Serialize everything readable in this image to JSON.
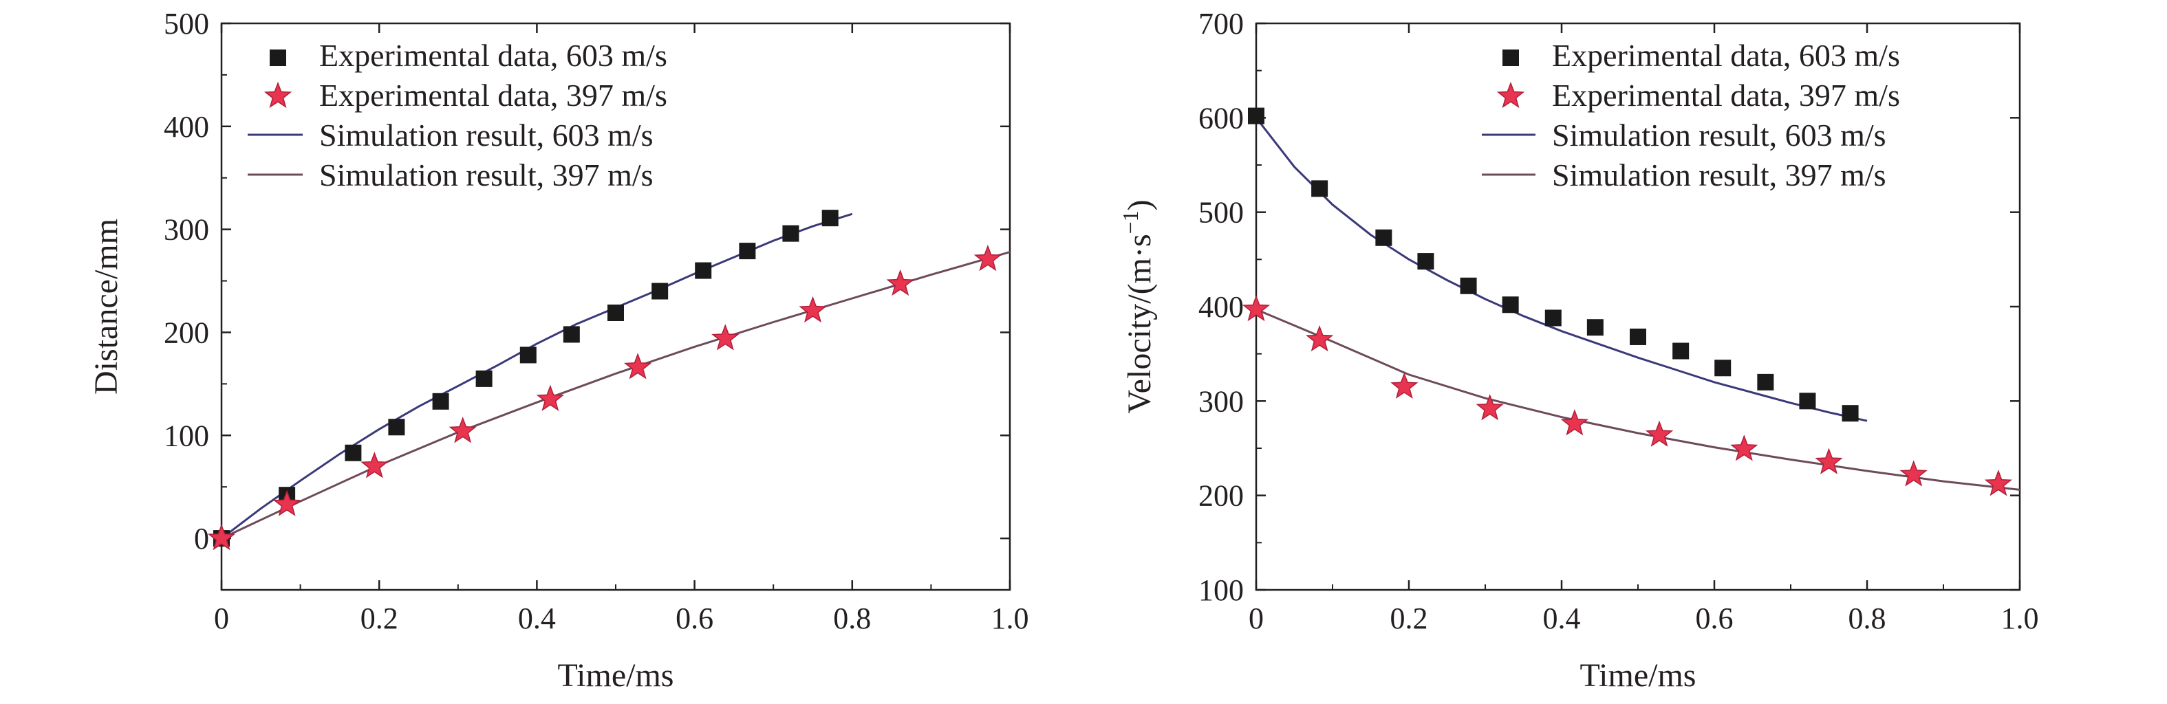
{
  "colors": {
    "axis": "#231f20",
    "series_603": "#1a1a1a",
    "series_397_fill": "#e8344e",
    "series_397_stroke": "#b01e3a",
    "sim_603_line": "#3a3a7a",
    "sim_397_line": "#6e4a5a"
  },
  "chart_data": [
    {
      "type": "scatter",
      "title": "",
      "xlabel": "Time/ms",
      "ylabel": "Distance/mm",
      "xlim": [
        0,
        1.0
      ],
      "ylim": [
        -50,
        500
      ],
      "x_ticks": [
        "0",
        "0.2",
        "0.4",
        "0.6",
        "0.8",
        "1.0"
      ],
      "y_ticks": [
        "0",
        "100",
        "200",
        "300",
        "400",
        "500"
      ],
      "legend_position": "top-left",
      "legend": [
        "Experimental data, 603 m/s",
        "Experimental data, 397 m/s",
        "Simulation result, 603 m/s",
        "Simulation result, 397 m/s"
      ],
      "series": [
        {
          "name": "Experimental data, 603 m/s",
          "marker": "square",
          "x": [
            0,
            0.083,
            0.167,
            0.222,
            0.278,
            0.333,
            0.389,
            0.444,
            0.5,
            0.556,
            0.611,
            0.667,
            0.722,
            0.772
          ],
          "y": [
            0,
            42,
            83,
            108,
            133,
            155,
            178,
            198,
            219,
            240,
            260,
            279,
            296,
            311
          ]
        },
        {
          "name": "Experimental data, 397 m/s",
          "marker": "star",
          "x": [
            0,
            0.083,
            0.194,
            0.306,
            0.417,
            0.528,
            0.639,
            0.75,
            0.861,
            0.972
          ],
          "y": [
            0,
            33,
            70,
            104,
            135,
            166,
            194,
            221,
            247,
            271
          ]
        },
        {
          "name": "Simulation result, 603 m/s",
          "line": true,
          "x": [
            0,
            0.05,
            0.1,
            0.15,
            0.2,
            0.25,
            0.3,
            0.35,
            0.4,
            0.45,
            0.5,
            0.55,
            0.6,
            0.65,
            0.7,
            0.75,
            0.8
          ],
          "y": [
            0,
            29,
            56,
            82,
            106,
            128,
            148,
            168,
            189,
            208,
            224,
            240,
            257,
            273,
            289,
            303,
            315
          ]
        },
        {
          "name": "Simulation result, 397 m/s",
          "line": true,
          "x": [
            0,
            0.1,
            0.2,
            0.3,
            0.4,
            0.5,
            0.6,
            0.7,
            0.8,
            0.9,
            1.0
          ],
          "y": [
            0,
            36,
            71,
            103,
            132,
            160,
            186,
            210,
            233,
            256,
            278
          ]
        }
      ]
    },
    {
      "type": "scatter",
      "title": "",
      "xlabel": "Time/ms",
      "ylabel": "Velocity/(m·s",
      "ylabel_sup": "−1",
      "ylabel_end": ")",
      "xlim": [
        0,
        1.0
      ],
      "ylim": [
        100,
        700
      ],
      "x_ticks": [
        "0",
        "0.2",
        "0.4",
        "0.6",
        "0.8",
        "1.0"
      ],
      "y_ticks": [
        "100",
        "200",
        "300",
        "400",
        "500",
        "600",
        "700"
      ],
      "legend_position": "top-right",
      "legend": [
        "Experimental data, 603 m/s",
        "Experimental data, 397 m/s",
        "Simulation result, 603 m/s",
        "Simulation result, 397 m/s"
      ],
      "series": [
        {
          "name": "Experimental data, 603 m/s",
          "marker": "square",
          "x": [
            0,
            0.083,
            0.167,
            0.222,
            0.278,
            0.333,
            0.389,
            0.444,
            0.5,
            0.556,
            0.611,
            0.667,
            0.722,
            0.778
          ],
          "y": [
            602,
            525,
            473,
            448,
            422,
            402,
            388,
            378,
            368,
            353,
            335,
            320,
            300,
            287
          ]
        },
        {
          "name": "Experimental data, 397 m/s",
          "marker": "star",
          "x": [
            0,
            0.083,
            0.194,
            0.306,
            0.417,
            0.528,
            0.639,
            0.75,
            0.861,
            0.972
          ],
          "y": [
            397,
            365,
            315,
            292,
            276,
            264,
            249,
            235,
            222,
            212
          ]
        },
        {
          "name": "Simulation result, 603 m/s",
          "line": true,
          "x": [
            0,
            0.05,
            0.1,
            0.15,
            0.2,
            0.25,
            0.3,
            0.35,
            0.4,
            0.45,
            0.5,
            0.55,
            0.6,
            0.65,
            0.7,
            0.75,
            0.8
          ],
          "y": [
            600,
            548,
            508,
            476,
            450,
            428,
            408,
            390,
            374,
            360,
            346,
            333,
            320,
            309,
            298,
            288,
            279
          ]
        },
        {
          "name": "Simulation result, 397 m/s",
          "line": true,
          "x": [
            0,
            0.1,
            0.2,
            0.3,
            0.4,
            0.5,
            0.6,
            0.7,
            0.8,
            0.9,
            1.0
          ],
          "y": [
            397,
            363,
            328,
            303,
            283,
            266,
            251,
            238,
            226,
            215,
            206
          ]
        }
      ]
    }
  ]
}
